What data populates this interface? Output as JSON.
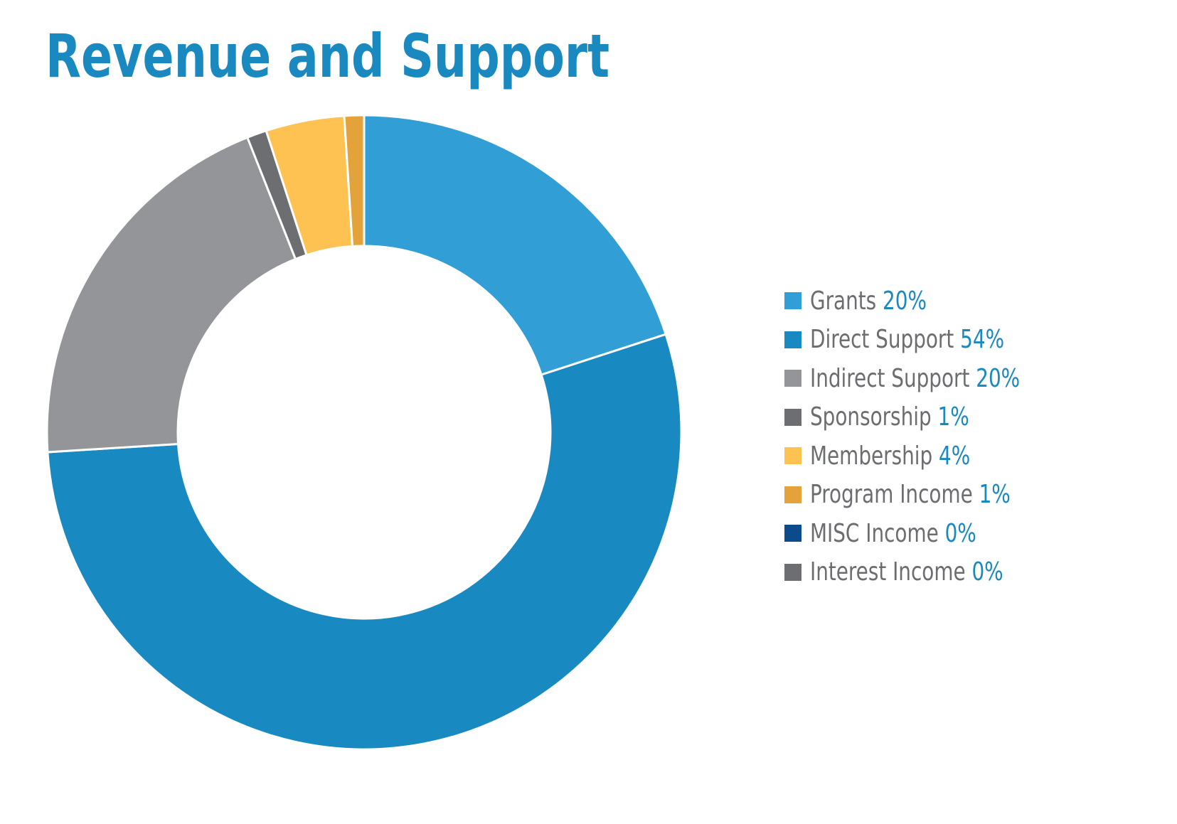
{
  "chart_data": {
    "type": "pie",
    "title": "Revenue and Support",
    "categories": [
      "Grants",
      "Direct Support",
      "Indirect Support",
      "Sponsorship",
      "Membership",
      "Program Income",
      "MISC Income",
      "Interest Income"
    ],
    "values": [
      20,
      54,
      20,
      1,
      4,
      1,
      0,
      0
    ],
    "value_labels": [
      "20%",
      "54%",
      "20%",
      "1%",
      "4%",
      "1%",
      "0%",
      "0%"
    ],
    "colors": [
      "#329ed6",
      "#1989c1",
      "#939598",
      "#6d6e71",
      "#fdc251",
      "#e4a23a",
      "#0b4a8b",
      "#6d6e71"
    ],
    "donut": true,
    "legend_position": "right"
  }
}
